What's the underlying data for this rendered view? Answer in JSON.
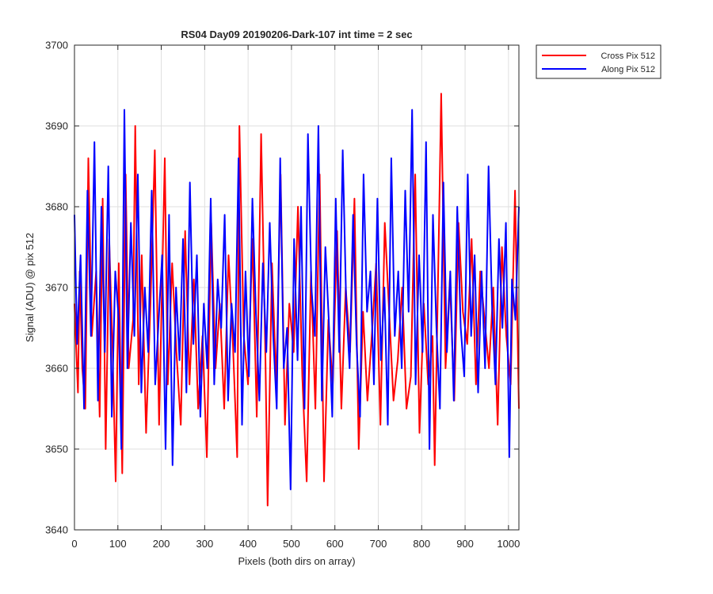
{
  "chart_data": {
    "type": "line",
    "title": "RS04 Day09 20190206-Dark-107 int time = 2 sec",
    "xlabel": "Pixels (both dirs on array)",
    "ylabel": "Signal (ADU) @ pix 512",
    "xlim": [
      0,
      1024
    ],
    "ylim": [
      3640,
      3700
    ],
    "xticks": [
      0,
      100,
      200,
      300,
      400,
      500,
      600,
      700,
      800,
      900,
      1000
    ],
    "yticks": [
      3640,
      3650,
      3660,
      3670,
      3680,
      3690,
      3700
    ],
    "xtick_labels": [
      "0",
      "100",
      "200",
      "300",
      "400",
      "500",
      "600",
      "700",
      "800",
      "900",
      "1000"
    ],
    "ytick_labels": [
      "3640",
      "3650",
      "3660",
      "3670",
      "3680",
      "3690",
      "3700"
    ],
    "grid": true,
    "legend_position": "outside-top-right",
    "series": [
      {
        "name": "Cross Pix 512",
        "color": "#ff0000",
        "x": [
          0,
          8,
          12,
          18,
          25,
          32,
          40,
          50,
          58,
          65,
          72,
          80,
          88,
          95,
          102,
          110,
          118,
          125,
          135,
          140,
          148,
          155,
          165,
          175,
          185,
          195,
          200,
          208,
          215,
          225,
          235,
          245,
          255,
          265,
          275,
          285,
          295,
          305,
          315,
          325,
          335,
          345,
          355,
          365,
          375,
          380,
          390,
          400,
          410,
          420,
          430,
          440,
          445,
          455,
          465,
          475,
          485,
          495,
          505,
          515,
          525,
          535,
          545,
          555,
          565,
          575,
          585,
          595,
          605,
          615,
          625,
          635,
          645,
          655,
          665,
          675,
          685,
          695,
          705,
          715,
          725,
          735,
          745,
          755,
          765,
          775,
          785,
          795,
          805,
          815,
          825,
          830,
          840,
          845,
          855,
          865,
          875,
          885,
          895,
          905,
          915,
          925,
          935,
          945,
          955,
          965,
          975,
          985,
          995,
          1005,
          1015,
          1024
        ],
        "values": [
          3668,
          3657,
          3672,
          3660,
          3655,
          3686,
          3664,
          3672,
          3654,
          3681,
          3650,
          3676,
          3662,
          3646,
          3673,
          3647,
          3684,
          3660,
          3666,
          3690,
          3658,
          3674,
          3652,
          3668,
          3687,
          3653,
          3666,
          3686,
          3658,
          3673,
          3662,
          3653,
          3677,
          3658,
          3671,
          3655,
          3664,
          3649,
          3678,
          3660,
          3668,
          3655,
          3674,
          3663,
          3649,
          3690,
          3664,
          3658,
          3676,
          3654,
          3689,
          3661,
          3643,
          3673,
          3658,
          3684,
          3653,
          3668,
          3662,
          3680,
          3659,
          3646,
          3672,
          3655,
          3684,
          3646,
          3666,
          3658,
          3677,
          3655,
          3670,
          3662,
          3681,
          3650,
          3667,
          3656,
          3664,
          3673,
          3653,
          3678,
          3667,
          3656,
          3661,
          3670,
          3655,
          3659,
          3684,
          3652,
          3668,
          3658,
          3664,
          3648,
          3678,
          3694,
          3660,
          3671,
          3656,
          3678,
          3667,
          3663,
          3676,
          3658,
          3672,
          3666,
          3660,
          3670,
          3653,
          3675,
          3664,
          3658,
          3682,
          3655
        ]
      },
      {
        "name": "Along Pix 512",
        "color": "#0000ff",
        "x": [
          0,
          6,
          14,
          22,
          30,
          38,
          46,
          54,
          62,
          70,
          78,
          86,
          94,
          102,
          108,
          115,
          122,
          130,
          138,
          146,
          154,
          162,
          170,
          178,
          186,
          194,
          202,
          210,
          218,
          226,
          234,
          242,
          250,
          258,
          266,
          274,
          282,
          290,
          298,
          306,
          314,
          322,
          330,
          338,
          346,
          354,
          362,
          370,
          378,
          386,
          394,
          402,
          410,
          418,
          426,
          434,
          442,
          450,
          458,
          466,
          474,
          482,
          490,
          498,
          506,
          514,
          522,
          530,
          538,
          546,
          554,
          562,
          570,
          578,
          586,
          594,
          602,
          610,
          618,
          626,
          634,
          642,
          650,
          658,
          666,
          674,
          682,
          690,
          698,
          706,
          714,
          722,
          730,
          738,
          746,
          754,
          762,
          770,
          778,
          786,
          794,
          802,
          810,
          818,
          826,
          834,
          842,
          850,
          858,
          866,
          874,
          882,
          890,
          898,
          906,
          914,
          922,
          930,
          938,
          946,
          954,
          962,
          970,
          978,
          986,
          994,
          1002,
          1008,
          1016,
          1024
        ],
        "values": [
          3679,
          3663,
          3674,
          3655,
          3682,
          3664,
          3688,
          3656,
          3680,
          3662,
          3685,
          3654,
          3672,
          3666,
          3650,
          3692,
          3660,
          3678,
          3664,
          3684,
          3657,
          3670,
          3662,
          3682,
          3658,
          3666,
          3674,
          3650,
          3679,
          3648,
          3670,
          3661,
          3676,
          3657,
          3683,
          3663,
          3674,
          3654,
          3668,
          3660,
          3681,
          3658,
          3671,
          3665,
          3679,
          3656,
          3668,
          3662,
          3686,
          3653,
          3672,
          3659,
          3681,
          3667,
          3656,
          3673,
          3662,
          3678,
          3664,
          3655,
          3686,
          3660,
          3665,
          3645,
          3676,
          3661,
          3680,
          3655,
          3689,
          3670,
          3664,
          3690,
          3656,
          3675,
          3666,
          3654,
          3681,
          3662,
          3687,
          3668,
          3660,
          3679,
          3663,
          3654,
          3684,
          3667,
          3672,
          3658,
          3681,
          3661,
          3670,
          3653,
          3686,
          3664,
          3672,
          3660,
          3682,
          3667,
          3692,
          3658,
          3674,
          3662,
          3688,
          3650,
          3679,
          3665,
          3655,
          3683,
          3662,
          3672,
          3656,
          3680,
          3665,
          3659,
          3684,
          3664,
          3674,
          3657,
          3672,
          3660,
          3685,
          3668,
          3658,
          3676,
          3665,
          3678,
          3649,
          3671,
          3666,
          3680
        ]
      }
    ]
  }
}
